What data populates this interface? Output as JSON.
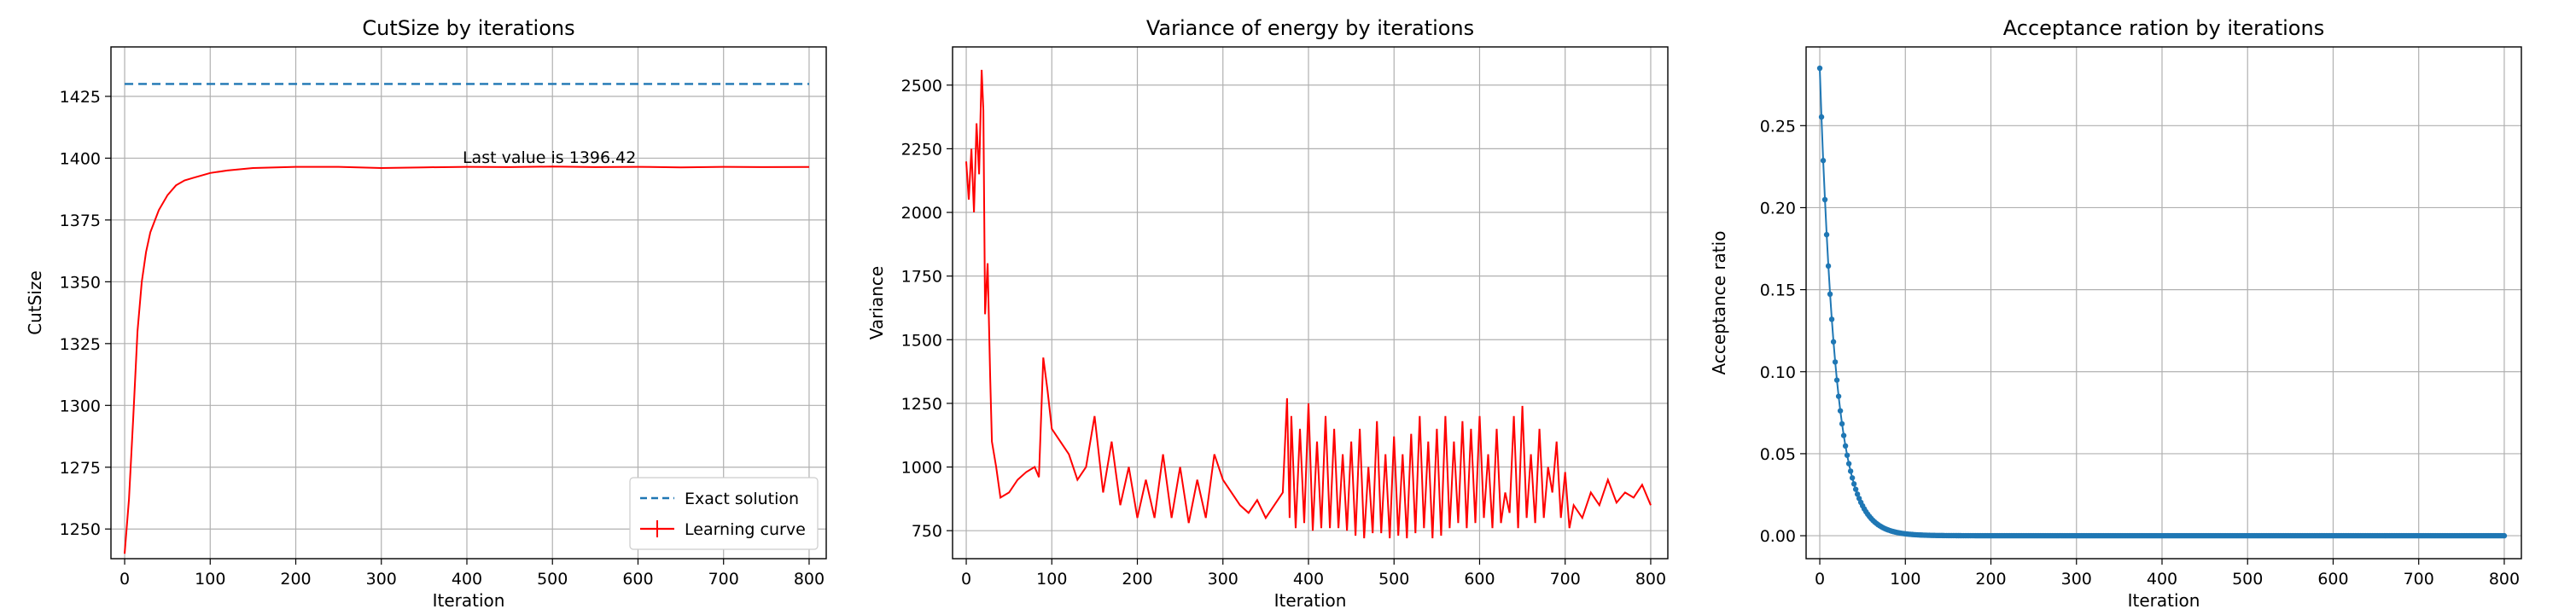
{
  "chart_data": [
    {
      "type": "line",
      "title": "CutSize by iterations",
      "xlabel": "Iteration",
      "ylabel": "CutSize",
      "xlim": [
        -16,
        820
      ],
      "ylim": [
        1238,
        1445
      ],
      "xticks": [
        0,
        100,
        200,
        300,
        400,
        500,
        600,
        700,
        800
      ],
      "yticks": [
        1250,
        1275,
        1300,
        1325,
        1350,
        1375,
        1400,
        1425
      ],
      "grid": true,
      "legend_position": "lower-right",
      "annotation": {
        "text": "Last value is 1396.42",
        "x": 395,
        "y": 1398
      },
      "series": [
        {
          "name": "Exact solution",
          "style": "dashed",
          "color": "#1f77b4",
          "constant": 1430
        },
        {
          "name": "Learning curve",
          "style": "solid",
          "color": "#ff0000",
          "x": [
            0,
            5,
            10,
            15,
            20,
            25,
            30,
            40,
            50,
            60,
            70,
            80,
            90,
            100,
            120,
            150,
            200,
            250,
            300,
            350,
            400,
            450,
            500,
            550,
            600,
            650,
            700,
            750,
            800
          ],
          "y": [
            1240,
            1262,
            1295,
            1330,
            1350,
            1362,
            1370,
            1379,
            1385,
            1389,
            1391,
            1392,
            1393,
            1394,
            1395,
            1396,
            1396.5,
            1396.5,
            1396,
            1396.3,
            1396.5,
            1396.4,
            1396.6,
            1396.4,
            1396.5,
            1396.3,
            1396.5,
            1396.4,
            1396.42
          ]
        }
      ]
    },
    {
      "type": "line",
      "title": "Variance of energy by iterations",
      "xlabel": "Iteration",
      "ylabel": "Variance",
      "xlim": [
        -16,
        820
      ],
      "ylim": [
        640,
        2650
      ],
      "xticks": [
        0,
        100,
        200,
        300,
        400,
        500,
        600,
        700,
        800
      ],
      "yticks": [
        750,
        1000,
        1250,
        1500,
        1750,
        2000,
        2250,
        2500
      ],
      "grid": true,
      "series": [
        {
          "color": "#ff0000",
          "x": [
            0,
            3,
            6,
            9,
            12,
            15,
            18,
            20,
            22,
            25,
            28,
            30,
            35,
            40,
            50,
            60,
            70,
            80,
            85,
            90,
            95,
            100,
            110,
            120,
            130,
            140,
            150,
            160,
            170,
            180,
            190,
            200,
            210,
            220,
            230,
            240,
            250,
            260,
            270,
            280,
            290,
            300,
            310,
            320,
            330,
            340,
            350,
            360,
            370,
            375,
            378,
            380,
            385,
            390,
            395,
            400,
            405,
            410,
            415,
            420,
            425,
            430,
            435,
            440,
            445,
            450,
            455,
            460,
            465,
            470,
            475,
            480,
            485,
            490,
            495,
            500,
            505,
            510,
            515,
            520,
            525,
            530,
            535,
            540,
            545,
            550,
            555,
            560,
            565,
            570,
            575,
            580,
            585,
            590,
            595,
            600,
            605,
            610,
            615,
            620,
            625,
            630,
            635,
            640,
            645,
            650,
            655,
            660,
            665,
            670,
            675,
            680,
            685,
            690,
            695,
            700,
            705,
            710,
            720,
            730,
            740,
            750,
            760,
            770,
            780,
            790,
            800
          ],
          "y": [
            2200,
            2050,
            2250,
            2000,
            2350,
            2150,
            2560,
            2400,
            1600,
            1800,
            1350,
            1100,
            1000,
            880,
            900,
            950,
            980,
            1000,
            960,
            1430,
            1300,
            1150,
            1100,
            1050,
            950,
            1000,
            1200,
            900,
            1100,
            850,
            1000,
            800,
            950,
            800,
            1050,
            800,
            1000,
            780,
            950,
            800,
            1050,
            950,
            900,
            850,
            820,
            870,
            800,
            850,
            900,
            1270,
            800,
            1200,
            760,
            1150,
            780,
            1250,
            750,
            1100,
            760,
            1200,
            760,
            1150,
            760,
            1050,
            750,
            1100,
            730,
            1150,
            720,
            1000,
            740,
            1180,
            740,
            1050,
            720,
            1120,
            730,
            1050,
            720,
            1130,
            740,
            1200,
            760,
            1100,
            720,
            1150,
            730,
            1200,
            760,
            1100,
            780,
            1180,
            760,
            1150,
            780,
            1200,
            800,
            1050,
            760,
            1150,
            780,
            900,
            820,
            1200,
            760,
            1240,
            800,
            1050,
            780,
            1150,
            800,
            1000,
            900,
            1100,
            800,
            980,
            760,
            850,
            800,
            900,
            850,
            950,
            860,
            900,
            880,
            930,
            850
          ]
        }
      ]
    },
    {
      "type": "line",
      "title": "Acceptance ration by iterations",
      "xlabel": "Iteration",
      "ylabel": "Acceptance ratio",
      "xlim": [
        -16,
        820
      ],
      "ylim": [
        -0.014,
        0.298
      ],
      "xticks": [
        0,
        100,
        200,
        300,
        400,
        500,
        600,
        700,
        800
      ],
      "yticks": [
        0.0,
        0.05,
        0.1,
        0.15,
        0.2,
        0.25
      ],
      "grid": true,
      "markers": true,
      "series": [
        {
          "color": "#1f77b4",
          "decay": {
            "start": 0.285,
            "rate": 0.055,
            "step": 2,
            "end": 800
          }
        }
      ]
    }
  ],
  "legend": {
    "exact": "Exact solution",
    "learning": "Learning curve"
  }
}
